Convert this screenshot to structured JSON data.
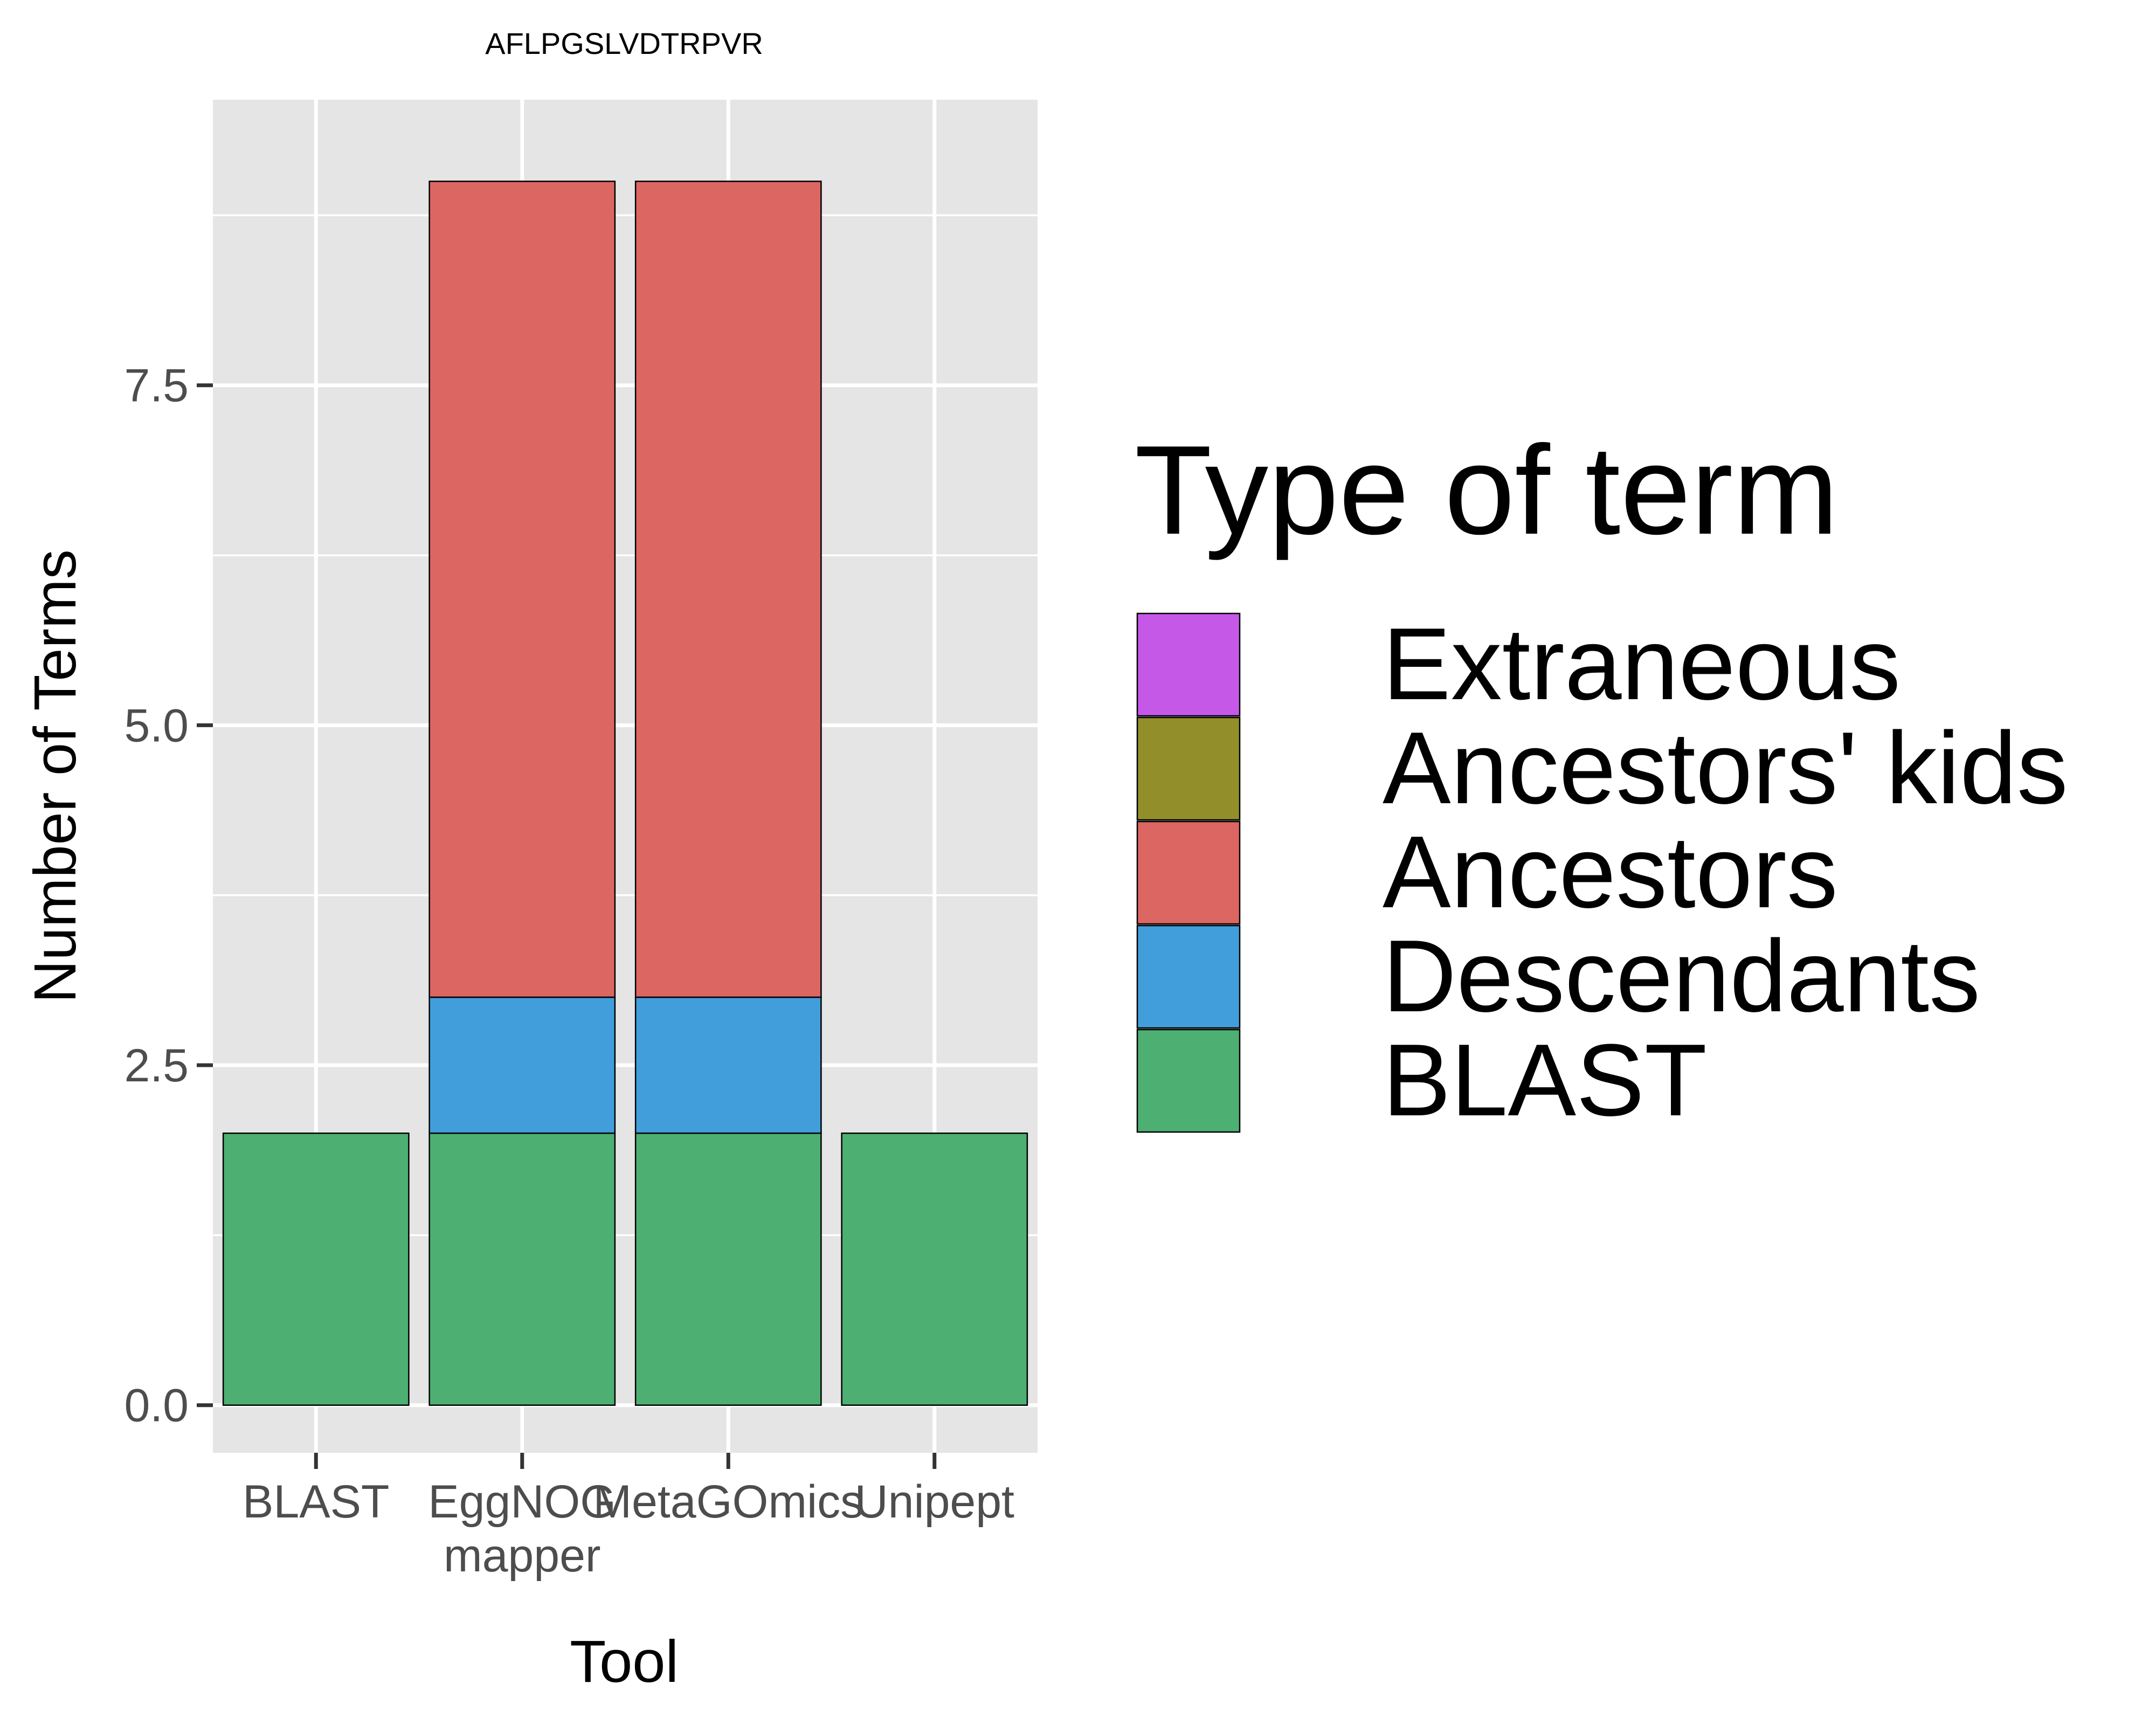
{
  "chart_data": {
    "type": "bar",
    "stacked": true,
    "title": "AFLPGSLVDTRPVR",
    "xlabel": "Tool",
    "ylabel": "Number of Terms",
    "categories": [
      [
        "BLAST"
      ],
      [
        "EggNOG",
        "mapper"
      ],
      [
        "MetaGOmics"
      ],
      [
        "Unipept"
      ]
    ],
    "ylim": [
      -0.35,
      9.6
    ],
    "yticks": [
      0.0,
      2.5,
      5.0,
      7.5
    ],
    "ytick_labels": [
      "0.0",
      "2.5",
      "5.0",
      "7.5"
    ],
    "grid": true,
    "legend_position": "right",
    "legend_title": "Type of term",
    "series": [
      {
        "name": "BLAST",
        "color": "#4daf72",
        "values": [
          2,
          2,
          2,
          2
        ]
      },
      {
        "name": "Descendants",
        "color": "#419edb",
        "values": [
          0,
          1,
          1,
          0
        ]
      },
      {
        "name": "Ancestors",
        "color": "#dc6662",
        "values": [
          0,
          6,
          6,
          0
        ]
      },
      {
        "name": "Ancestors' kids",
        "color": "#928f2a",
        "values": [
          0,
          0,
          0,
          0
        ]
      },
      {
        "name": "Extraneous",
        "color": "#c658e8",
        "values": [
          0,
          0,
          0,
          0
        ]
      }
    ],
    "legend_order": [
      "Extraneous",
      "Ancestors' kids",
      "Ancestors",
      "Descendants",
      "BLAST"
    ],
    "panel_color": "#e5e5e5"
  }
}
